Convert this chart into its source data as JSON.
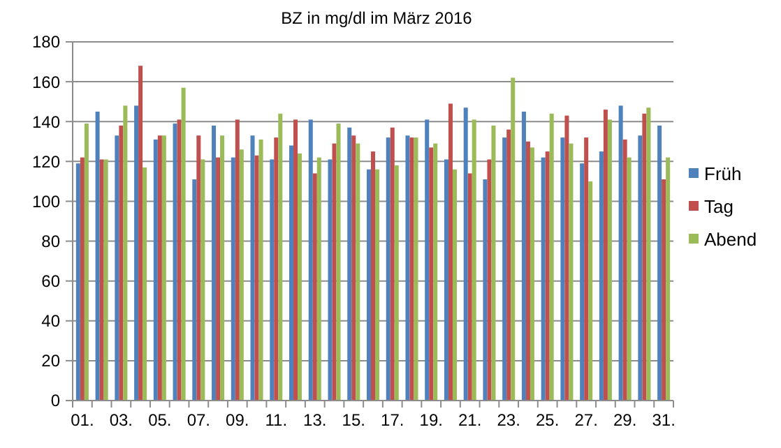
{
  "chart_data": {
    "type": "bar",
    "title": "BZ in mg/dl im März 2016",
    "categories": [
      "01.",
      null,
      "03.",
      null,
      "05.",
      null,
      "07.",
      null,
      "09.",
      null,
      "11.",
      null,
      "13.",
      null,
      "15.",
      null,
      "17.",
      null,
      "19.",
      null,
      "21.",
      null,
      "23.",
      null,
      "25.",
      null,
      "27.",
      null,
      "29.",
      null,
      "31."
    ],
    "series": [
      {
        "name": "Früh",
        "color": "#4f81bd",
        "values": [
          119,
          145,
          133,
          148,
          131,
          139,
          111,
          138,
          122,
          133,
          121,
          128,
          141,
          121,
          137,
          116,
          132,
          133,
          141,
          121,
          147,
          111,
          132,
          145,
          122,
          132,
          119,
          125,
          148,
          133,
          138
        ]
      },
      {
        "name": "Tag",
        "color": "#c0504d",
        "values": [
          122,
          121,
          138,
          168,
          133,
          141,
          133,
          122,
          141,
          123,
          132,
          141,
          114,
          129,
          133,
          125,
          137,
          132,
          127,
          149,
          114,
          121,
          136,
          130,
          125,
          143,
          132,
          146,
          131,
          144,
          111
        ]
      },
      {
        "name": "Abend",
        "color": "#9bbb59",
        "values": [
          139,
          121,
          148,
          117,
          133,
          157,
          121,
          133,
          126,
          131,
          144,
          124,
          122,
          139,
          129,
          116,
          118,
          132,
          129,
          116,
          141,
          138,
          162,
          127,
          144,
          129,
          110,
          141,
          122,
          147,
          122
        ]
      }
    ],
    "ylim": [
      0,
      180
    ],
    "yticks": [
      0,
      20,
      40,
      60,
      80,
      100,
      120,
      140,
      160,
      180
    ],
    "grid": "y",
    "legend": "right"
  }
}
